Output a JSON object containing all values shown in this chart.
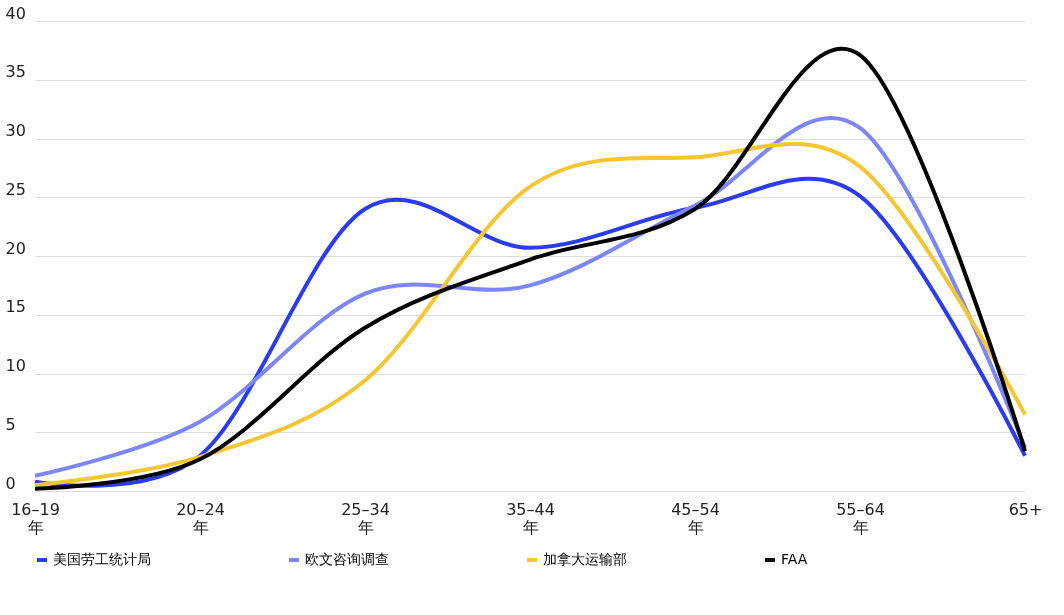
{
  "chart_data": {
    "type": "line",
    "categories": [
      "16–19 年",
      "20–24 年",
      "25–34 年",
      "35–44 年",
      "45–54 年",
      "55–64 年",
      "65+"
    ],
    "series": [
      {
        "name": "美国劳工统计局",
        "color": "#2b3bef",
        "values": [
          0.8,
          3,
          24,
          20.7,
          24.1,
          25.1,
          3
        ]
      },
      {
        "name": "欧文咨询调查",
        "color": "#7c86f6",
        "values": [
          1.3,
          5.9,
          16.8,
          17.5,
          24.3,
          30.9,
          3.7
        ]
      },
      {
        "name": "加拿大运输部",
        "color": "#f6c632",
        "values": [
          0.5,
          2.9,
          9.4,
          25.9,
          28.4,
          27.6,
          6.5
        ]
      },
      {
        "name": "FAA",
        "color": "#000000",
        "values": [
          0.2,
          2.7,
          13.9,
          19.7,
          24,
          37.1,
          3.4
        ]
      }
    ],
    "ylim": [
      0,
      40
    ],
    "yticks": [
      0,
      5,
      10,
      15,
      20,
      25,
      30,
      35,
      40
    ],
    "grid": "y",
    "legend": "bottom",
    "marker": "none",
    "line_style": "solid"
  }
}
